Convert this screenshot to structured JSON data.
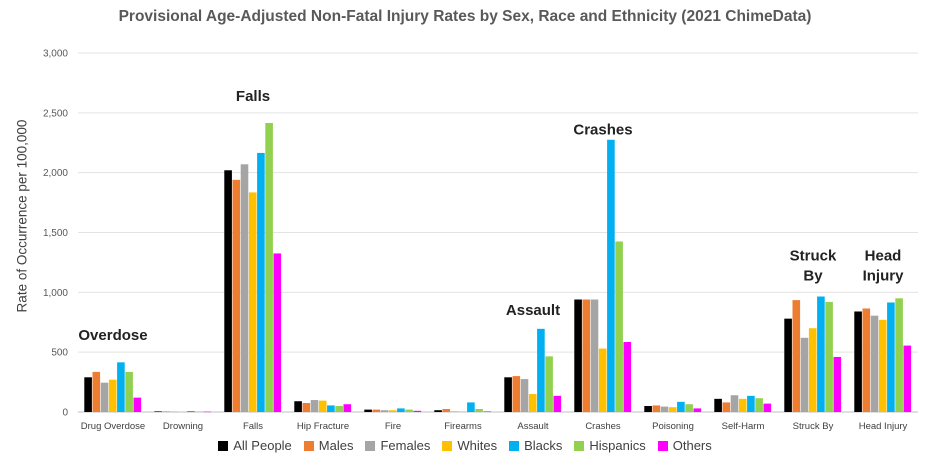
{
  "chart_data": {
    "type": "bar",
    "title": "Provisional Age-Adjusted Non-Fatal Injury Rates by Sex, Race and Ethnicity (2021 ChimeData)",
    "ylabel": "Rate of Occurrence per 100,000",
    "xlabel": "",
    "ylim": [
      0,
      3000
    ],
    "yticks": [
      "0",
      "500",
      "1,000",
      "1,500",
      "2,000",
      "2,500",
      "3,000"
    ],
    "grid": true,
    "legend_position": "bottom",
    "categories": [
      "Drug Overdose",
      "Drowning",
      "Falls",
      "Hip Fracture",
      "Fire",
      "Firearms",
      "Assault",
      "Crashes",
      "Poisoning",
      "Self-Harm",
      "Struck By",
      "Head Injury"
    ],
    "series": [
      {
        "name": "All People",
        "color": "#000000",
        "values": [
          290,
          5,
          2020,
          90,
          20,
          15,
          290,
          940,
          50,
          110,
          780,
          840
        ]
      },
      {
        "name": "Males",
        "color": "#ED7D31",
        "values": [
          335,
          5,
          1940,
          75,
          20,
          25,
          300,
          940,
          55,
          80,
          935,
          865
        ]
      },
      {
        "name": "Females",
        "color": "#A5A5A5",
        "values": [
          245,
          3,
          2070,
          100,
          15,
          5,
          275,
          940,
          45,
          140,
          620,
          805
        ]
      },
      {
        "name": "Whites",
        "color": "#FFC000",
        "values": [
          270,
          4,
          1835,
          95,
          15,
          5,
          150,
          530,
          40,
          110,
          700,
          770
        ]
      },
      {
        "name": "Blacks",
        "color": "#00B0F0",
        "values": [
          415,
          8,
          2165,
          55,
          30,
          80,
          695,
          2275,
          85,
          135,
          965,
          915
        ]
      },
      {
        "name": "Hispanics",
        "color": "#92D050",
        "values": [
          335,
          4,
          2415,
          50,
          20,
          25,
          465,
          1425,
          65,
          115,
          920,
          950
        ]
      },
      {
        "name": "Others",
        "color": "#FF00FF",
        "values": [
          120,
          3,
          1325,
          65,
          10,
          5,
          135,
          585,
          30,
          70,
          460,
          555
        ]
      }
    ],
    "annotations": [
      {
        "text": "Overdose",
        "category": "Drug Overdose",
        "value": 600
      },
      {
        "text": "Falls",
        "category": "Falls",
        "value": 2600
      },
      {
        "text": "Assault",
        "category": "Assault",
        "value": 810
      },
      {
        "text": "Crashes",
        "category": "Crashes",
        "value": 2320
      },
      {
        "text": "Struck\nBy",
        "category": "Struck By",
        "value": 1100
      },
      {
        "text": "Head\nInjury",
        "category": "Head Injury",
        "value": 1100
      }
    ]
  }
}
